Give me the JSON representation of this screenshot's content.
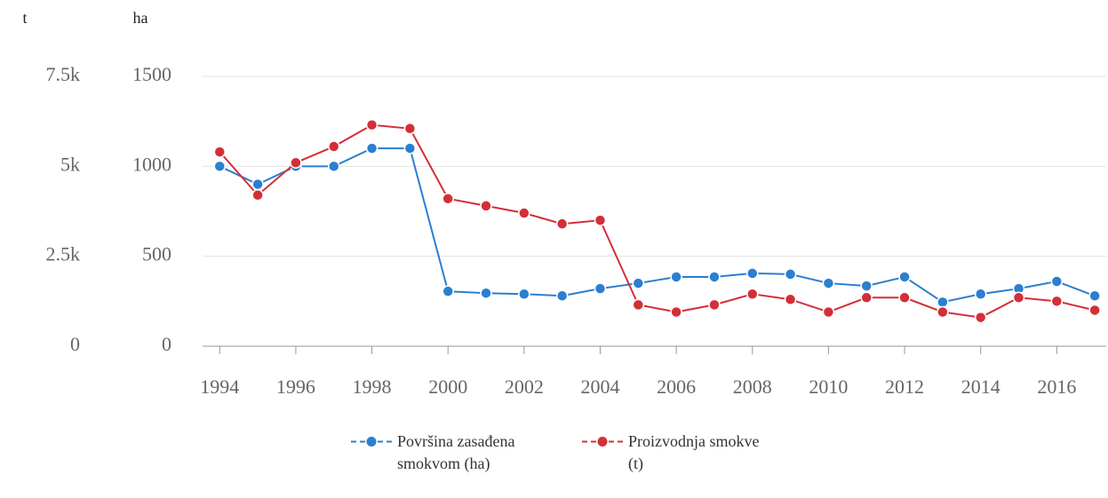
{
  "chart_data": {
    "type": "line",
    "y_label": "ha",
    "y2_label": "t",
    "x": [
      1994,
      1995,
      1996,
      1997,
      1998,
      1999,
      2000,
      2001,
      2002,
      2003,
      2004,
      2005,
      2006,
      2007,
      2008,
      2009,
      2010,
      2011,
      2012,
      2013,
      2014,
      2015,
      2016,
      2017
    ],
    "xlim": [
      1993.55,
      2017.3
    ],
    "xticks": [
      1994,
      1996,
      1998,
      2000,
      2002,
      2004,
      2006,
      2008,
      2010,
      2012,
      2014,
      2016
    ],
    "ylim": [
      0,
      1500
    ],
    "yticks": [
      0,
      500,
      1000,
      1500
    ],
    "y2lim": [
      0,
      7500
    ],
    "y2ticks": [
      0,
      {
        "value": 2500,
        "label": "2.5k"
      },
      {
        "value": 5000,
        "label": "5k"
      },
      {
        "value": 7500,
        "label": "7.5k"
      }
    ],
    "grid": true,
    "series": [
      {
        "name": "Površina zasađena smokvom (ha)",
        "color": "#2a7fd0",
        "values": [
          1000,
          900,
          1000,
          1000,
          1100,
          1100,
          305,
          295,
          290,
          280,
          320,
          350,
          385,
          385,
          405,
          400,
          350,
          335,
          385,
          245,
          290,
          320,
          360,
          280
        ]
      },
      {
        "name": "Proizvodnja smokve (t)",
        "color": "#d32f38",
        "axis": "y2",
        "values": [
          5400,
          4200,
          5100,
          5550,
          6150,
          6050,
          4100,
          3900,
          3700,
          3400,
          3500,
          1150,
          950,
          1150,
          1450,
          1300,
          950,
          1350,
          1350,
          950,
          800,
          1350,
          1250,
          1000
        ]
      }
    ]
  }
}
